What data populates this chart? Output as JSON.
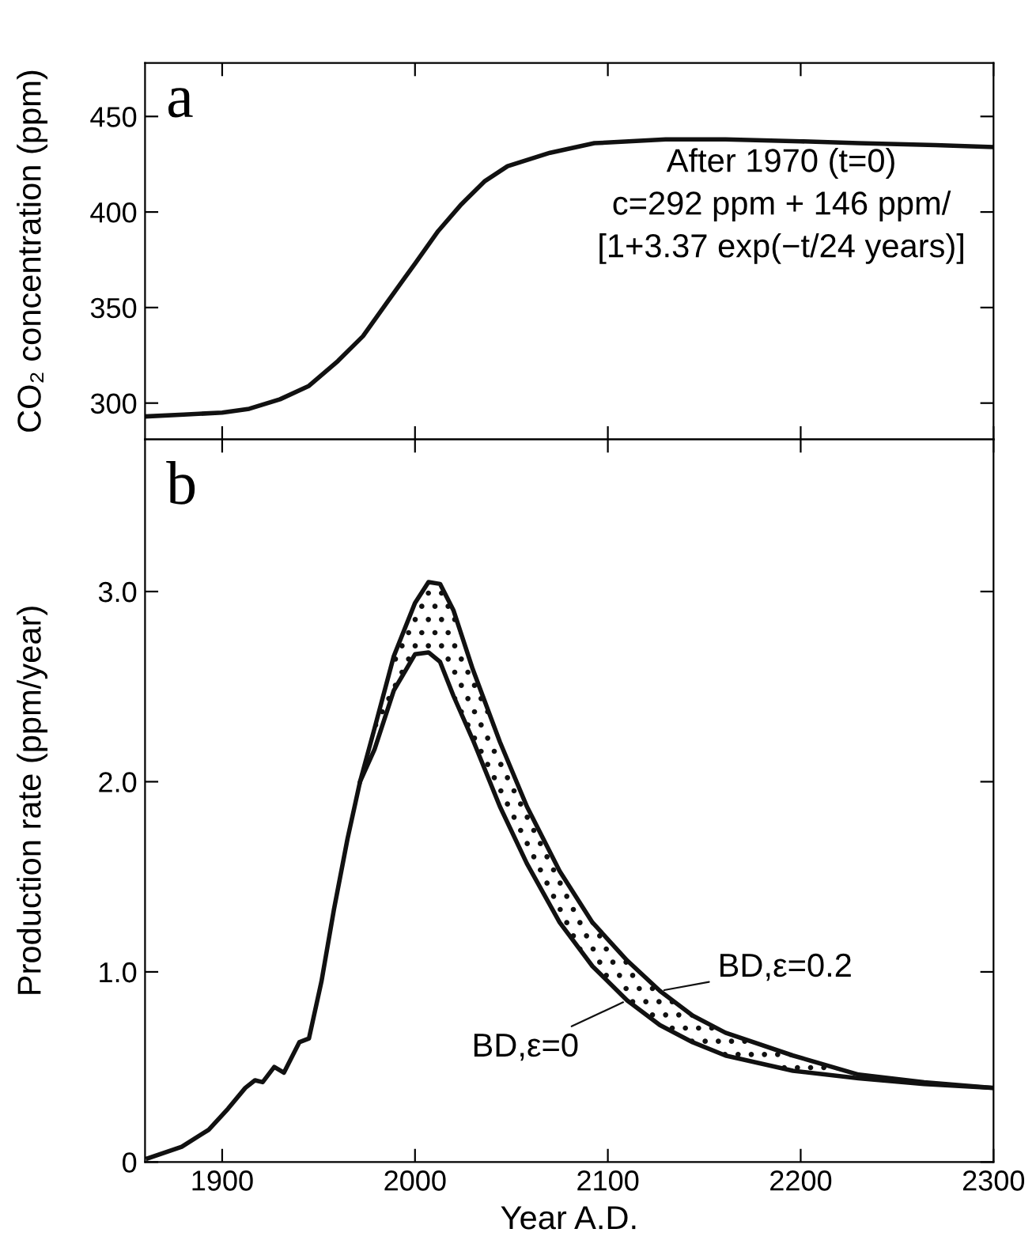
{
  "chart_data": [
    {
      "type": "line",
      "ylabel": "CO₂ concentration (ppm)",
      "xlim": [
        1860,
        2300
      ],
      "ylim": [
        281,
        478
      ],
      "xticks": [
        1900,
        2000,
        2100,
        2200,
        2300
      ],
      "yticks": [
        300,
        350,
        400,
        450
      ],
      "tick_labels": "y",
      "grid": false,
      "legend": false,
      "marker": "none",
      "line_style": "solid",
      "annotations": [
        "a",
        "After 1970 (t=0)\nc=292 ppm + 146 ppm/\n[1+3.37 exp(−t/24 years)]"
      ],
      "series": [
        {
          "color": "#111111",
          "x": [
            1860,
            1880,
            1900,
            1914,
            1930,
            1945,
            1960,
            1973,
            1985,
            2000,
            2012,
            2024,
            2036,
            2048,
            2070,
            2093,
            2130,
            2161,
            2200,
            2230,
            2270,
            2300
          ],
          "values": [
            293,
            294,
            295,
            297,
            302,
            309,
            322,
            335,
            352,
            373,
            390,
            404,
            416,
            424,
            431,
            436,
            438,
            438,
            437,
            436,
            435,
            434
          ]
        }
      ]
    },
    {
      "type": "line",
      "xlabel": "Year A.D.",
      "ylabel": "Production rate (ppm/year)",
      "xlim": [
        1860,
        2300
      ],
      "ylim": [
        0,
        3.8
      ],
      "xticks": [
        1900,
        2000,
        2100,
        2200,
        2300
      ],
      "yticks": [
        0,
        {
          "value": 1,
          "label": "1.0"
        },
        {
          "value": 2,
          "label": "2.0"
        },
        {
          "value": 3,
          "label": "3.0"
        }
      ],
      "grid": false,
      "legend": "bottom right",
      "marker": "none",
      "line_style": "solid",
      "annotations": [
        "b"
      ],
      "series": [
        {
          "name": "BD,ε=0",
          "color": "#111111",
          "x": [
            1861.5,
            1879,
            1893,
            1903,
            1912,
            1917,
            1921,
            1927,
            1932,
            1940,
            1945,
            1951.5,
            1958,
            1965,
            1971.5,
            1979,
            1989,
            2000,
            2007,
            2013,
            2020,
            2030,
            2044,
            2058,
            2075,
            2092,
            2110,
            2127,
            2144,
            2161,
            2196,
            2230,
            2264,
            2300
          ],
          "values": [
            0.02,
            0.08,
            0.17,
            0.28,
            0.39,
            0.43,
            0.42,
            0.5,
            0.47,
            0.63,
            0.65,
            0.95,
            1.33,
            1.7,
            2.0,
            2.17,
            2.48,
            2.67,
            2.68,
            2.63,
            2.45,
            2.22,
            1.87,
            1.57,
            1.26,
            1.03,
            0.85,
            0.72,
            0.63,
            0.56,
            0.48,
            0.44,
            0.41,
            0.39
          ]
        },
        {
          "name": "BD,ε=0.2",
          "color": "#111111",
          "x": [
            1971.5,
            1979,
            1989,
            2000,
            2007,
            2013,
            2020,
            2030,
            2044,
            2058,
            2075,
            2092,
            2110,
            2127,
            2144,
            2161,
            2196,
            2230,
            2264,
            2300
          ],
          "values": [
            2.0,
            2.28,
            2.66,
            2.94,
            3.05,
            3.04,
            2.9,
            2.59,
            2.21,
            1.87,
            1.53,
            1.26,
            1.06,
            0.9,
            0.77,
            0.68,
            0.56,
            0.46,
            0.42,
            0.39
          ],
          "lower": [
            2.0,
            2.17,
            2.48,
            2.67,
            2.68,
            2.63,
            2.45,
            2.22,
            1.87,
            1.57,
            1.26,
            1.03,
            0.85,
            0.72,
            0.63,
            0.56,
            0.48,
            0.44,
            0.41,
            0.39
          ],
          "upper": [
            2.0,
            2.28,
            2.66,
            2.94,
            3.05,
            3.04,
            2.9,
            2.59,
            2.21,
            1.87,
            1.53,
            1.26,
            1.06,
            0.9,
            0.77,
            0.68,
            0.56,
            0.46,
            0.42,
            0.39
          ]
        }
      ]
    }
  ]
}
